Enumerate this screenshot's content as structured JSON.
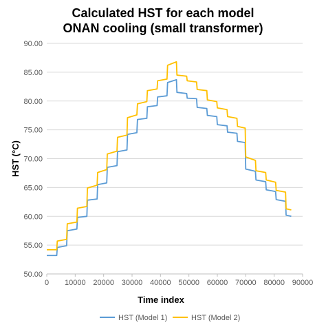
{
  "chart_data": {
    "type": "line",
    "title_line1": "Calculated HST for each model",
    "title_line2": "ONAN cooling (small transformer)",
    "xlabel": "Time index",
    "ylabel": "HST (°C)",
    "xlim": [
      0,
      90000
    ],
    "ylim": [
      50,
      90
    ],
    "xticks": [
      "0",
      "10000",
      "20000",
      "30000",
      "40000",
      "50000",
      "60000",
      "70000",
      "80000",
      "90000"
    ],
    "yticks": [
      "50.00",
      "55.00",
      "60.00",
      "65.00",
      "70.00",
      "75.00",
      "80.00",
      "85.00",
      "90.00"
    ],
    "grid": "horizontal",
    "legend_position": "bottom",
    "series": [
      {
        "name": "HST (Model 1)",
        "color": "#5B9BD5",
        "points": [
          [
            0,
            53.2
          ],
          [
            3500,
            53.2
          ],
          [
            3700,
            54.6
          ],
          [
            7000,
            54.9
          ],
          [
            7200,
            57.5
          ],
          [
            10600,
            57.8
          ],
          [
            10800,
            59.8
          ],
          [
            14100,
            60.0
          ],
          [
            14300,
            62.8
          ],
          [
            17700,
            63.0
          ],
          [
            17900,
            65.5
          ],
          [
            21100,
            65.8
          ],
          [
            21300,
            68.5
          ],
          [
            24700,
            68.8
          ],
          [
            24900,
            71.2
          ],
          [
            28200,
            71.5
          ],
          [
            28400,
            74.2
          ],
          [
            31700,
            74.5
          ],
          [
            31900,
            76.8
          ],
          [
            35200,
            77.0
          ],
          [
            35400,
            79.0
          ],
          [
            38800,
            79.2
          ],
          [
            39000,
            80.7
          ],
          [
            42300,
            80.9
          ],
          [
            42500,
            83.2
          ],
          [
            45600,
            83.7
          ],
          [
            45800,
            81.5
          ],
          [
            49200,
            81.3
          ],
          [
            49400,
            80.5
          ],
          [
            52700,
            80.4
          ],
          [
            52900,
            78.9
          ],
          [
            56300,
            78.7
          ],
          [
            56500,
            77.5
          ],
          [
            59800,
            77.3
          ],
          [
            60000,
            75.9
          ],
          [
            63400,
            75.7
          ],
          [
            63600,
            74.6
          ],
          [
            66900,
            74.4
          ],
          [
            67100,
            73.0
          ],
          [
            69800,
            72.8
          ],
          [
            70000,
            68.2
          ],
          [
            73400,
            67.8
          ],
          [
            73600,
            66.3
          ],
          [
            77000,
            66.0
          ],
          [
            77200,
            64.6
          ],
          [
            80500,
            64.3
          ],
          [
            80700,
            62.9
          ],
          [
            84000,
            62.6
          ],
          [
            84200,
            60.2
          ],
          [
            86000,
            60.0
          ]
        ]
      },
      {
        "name": "HST (Model 2)",
        "color": "#FFC000",
        "points": [
          [
            0,
            54.2
          ],
          [
            3500,
            54.2
          ],
          [
            3700,
            55.7
          ],
          [
            7000,
            56.0
          ],
          [
            7200,
            58.7
          ],
          [
            10600,
            59.0
          ],
          [
            10800,
            61.4
          ],
          [
            14100,
            61.7
          ],
          [
            14300,
            64.9
          ],
          [
            17700,
            65.4
          ],
          [
            17900,
            67.6
          ],
          [
            21100,
            68.1
          ],
          [
            21300,
            70.8
          ],
          [
            24700,
            71.3
          ],
          [
            24900,
            73.7
          ],
          [
            28200,
            74.1
          ],
          [
            28400,
            77.1
          ],
          [
            31700,
            77.6
          ],
          [
            31900,
            79.5
          ],
          [
            35200,
            79.9
          ],
          [
            35400,
            81.8
          ],
          [
            38800,
            82.1
          ],
          [
            39000,
            83.5
          ],
          [
            42300,
            83.8
          ],
          [
            42500,
            86.2
          ],
          [
            45600,
            86.8
          ],
          [
            45800,
            84.5
          ],
          [
            49200,
            84.3
          ],
          [
            49400,
            83.5
          ],
          [
            52700,
            83.3
          ],
          [
            52900,
            82.0
          ],
          [
            56300,
            81.8
          ],
          [
            56500,
            80.2
          ],
          [
            59800,
            79.9
          ],
          [
            60000,
            78.8
          ],
          [
            63400,
            78.5
          ],
          [
            63600,
            77.3
          ],
          [
            66900,
            77.0
          ],
          [
            67100,
            75.6
          ],
          [
            69800,
            75.3
          ],
          [
            70000,
            70.3
          ],
          [
            73400,
            69.7
          ],
          [
            73600,
            67.9
          ],
          [
            77000,
            67.6
          ],
          [
            77200,
            66.3
          ],
          [
            80500,
            65.9
          ],
          [
            80700,
            64.5
          ],
          [
            84000,
            64.2
          ],
          [
            84200,
            61.3
          ],
          [
            86000,
            61.1
          ]
        ]
      }
    ]
  }
}
